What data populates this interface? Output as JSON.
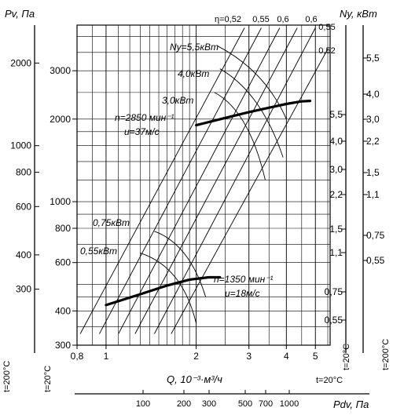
{
  "chart_data": {
    "type": "line",
    "title": "",
    "xlabel": "Q, 10⁻³·м³/ч",
    "ylabel_left": "Pv, Па",
    "ylabel_right": "Ny, кВт",
    "xlabel_bottom": "Pdv, Па",
    "x_ticks": [
      "0,8",
      "1",
      "2",
      "3",
      "4",
      "5"
    ],
    "pv_inner_ticks": [
      "300",
      "400",
      "600",
      "800",
      "1000",
      "2000",
      "3000"
    ],
    "pv_outer_ticks": [
      "300",
      "400",
      "600",
      "800",
      "1000",
      "2000"
    ],
    "ny_right_inner_ticks": [
      "0,55",
      "0,75",
      "1,1",
      "1,5",
      "2,2",
      "3,0",
      "4,0",
      "5,5"
    ],
    "ny_right_outer_ticks": [
      "0,55",
      "0,75",
      "1,1",
      "1,5",
      "2,2",
      "3,0",
      "4,0",
      "5,5"
    ],
    "pdv_ticks": [
      "100",
      "200",
      "300",
      "500",
      "700",
      "1000"
    ],
    "eta_labels": [
      "η=0,52",
      "0,55",
      "0,6",
      "0,6",
      "0,55",
      "0,52"
    ],
    "temp_labels": {
      "outer_left": "t=200°C",
      "inner_left": "t=20°C",
      "inner_right": "t=20°C",
      "outer_right": "t=200°C",
      "bottom": "t=20°C"
    },
    "series": [
      {
        "name": "n=2850 мин⁻¹",
        "subtitle": "u=37м/с",
        "x": [
          2.0,
          2.5,
          3.0,
          3.5,
          4.0,
          4.5,
          4.8
        ],
        "y": [
          1900,
          2020,
          2120,
          2200,
          2270,
          2320,
          2330
        ]
      },
      {
        "name": "n=1350 мин⁻¹",
        "subtitle": "u=18м/с",
        "x": [
          1.0,
          1.3,
          1.6,
          1.9,
          2.2,
          2.4
        ],
        "y": [
          420,
          460,
          495,
          520,
          530,
          530
        ]
      }
    ],
    "power_labels": [
      "Ny=5,5кВт",
      "4,0кВт",
      "3,0кВт",
      "0,75кВт",
      "0,55кВт"
    ],
    "xlim": [
      0.8,
      5.6
    ],
    "ylim": [
      300,
      4400
    ]
  }
}
